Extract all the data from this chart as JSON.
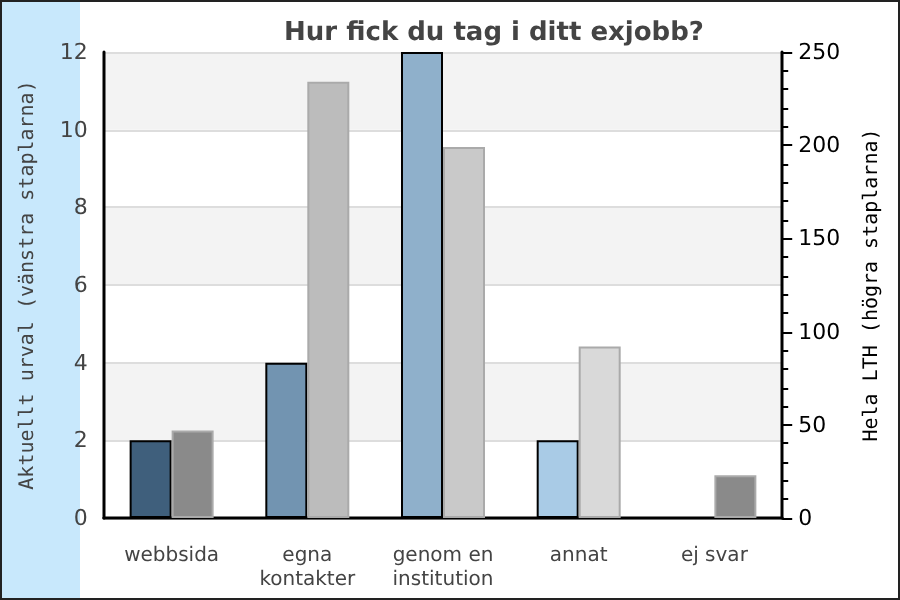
{
  "chart_data": {
    "type": "bar",
    "title": "Hur fick du tag i ditt exjobb?",
    "ylabel": "Aktuellt urval (vänstra staplarna)",
    "y2label": "Hela LTH (högra staplarna)",
    "categories": [
      "webbsida",
      "egna\nkontakter",
      "genom en\ninstitution",
      "annat",
      "ej svar"
    ],
    "series": [
      {
        "colors": [
          "#3f5f7c",
          "#7294b1",
          "#8fb0cb",
          "#a9cbe6",
          "#a9cbe6"
        ],
        "values": [
          2,
          4,
          12,
          2,
          0
        ]
      },
      {
        "axis": "y2",
        "colors": [
          "#8a8a8a",
          "#bcbcbc",
          "#c9c9c9",
          "#d9d9d9",
          "#8a8a8a"
        ],
        "values": [
          47,
          234,
          199,
          92,
          23
        ]
      }
    ],
    "ylim": [
      0,
      12
    ],
    "yticks": [
      0,
      2,
      4,
      6,
      8,
      10,
      12
    ],
    "y2lim": [
      0,
      250
    ],
    "y2ticks": [
      0,
      50,
      100,
      150,
      200,
      250
    ],
    "grid": "y"
  }
}
